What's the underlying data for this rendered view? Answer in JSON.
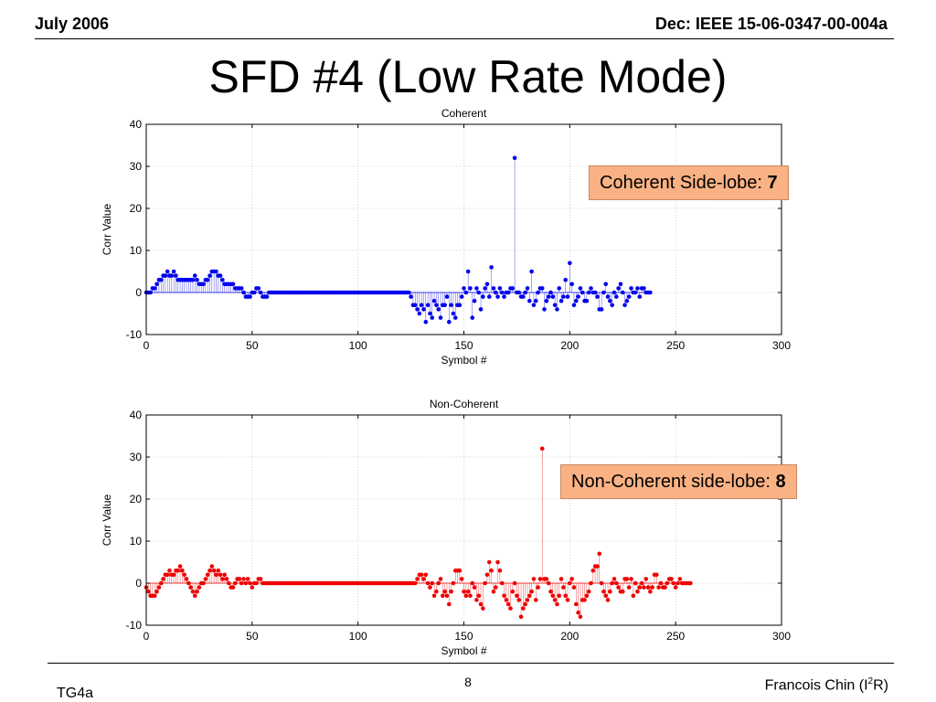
{
  "header": {
    "left": "July 2006",
    "right": "Dec: IEEE 15-06-0347-00-004a"
  },
  "slide_title": "SFD #4 (Low Rate Mode)",
  "callouts": {
    "coherent": {
      "label": "Coherent Side-lobe:",
      "value": "7"
    },
    "noncoherent": {
      "label": "Non-Coherent side-lobe:",
      "value": "8"
    }
  },
  "footer": {
    "left": "TG4a",
    "page": "8",
    "author_pre": "Francois Chin (I",
    "author_sup": "2",
    "author_post": "R)"
  },
  "colors": {
    "coherent": "#0000ee",
    "noncoherent": "#ee0000",
    "callout_fill": "#fab284"
  },
  "chart_data": [
    {
      "type": "stem",
      "title": "Coherent",
      "xlabel": "Symbol #",
      "ylabel": "Corr Value",
      "xlim": [
        0,
        300
      ],
      "ylim": [
        -10,
        40
      ],
      "xticks": [
        0,
        50,
        100,
        150,
        200,
        250,
        300
      ],
      "yticks": [
        -10,
        0,
        10,
        20,
        30,
        40
      ],
      "grid": true,
      "color": "#0000ee",
      "x_start": 0,
      "values": [
        0,
        0,
        0,
        1,
        1,
        2,
        3,
        3,
        4,
        4,
        5,
        4,
        4,
        5,
        4,
        3,
        3,
        3,
        3,
        3,
        3,
        3,
        3,
        4,
        3,
        2,
        2,
        2,
        3,
        3,
        4,
        5,
        5,
        5,
        4,
        4,
        3,
        2,
        2,
        2,
        2,
        2,
        1,
        1,
        1,
        1,
        0,
        -1,
        -1,
        -1,
        0,
        0,
        1,
        1,
        0,
        -1,
        -1,
        -1,
        0,
        0,
        0,
        0,
        0,
        0,
        0,
        0,
        0,
        0,
        0,
        0,
        0,
        0,
        0,
        0,
        0,
        0,
        0,
        0,
        0,
        0,
        0,
        0,
        0,
        0,
        0,
        0,
        0,
        0,
        0,
        0,
        0,
        0,
        0,
        0,
        0,
        0,
        0,
        0,
        0,
        0,
        0,
        0,
        0,
        0,
        0,
        0,
        0,
        0,
        0,
        0,
        0,
        0,
        0,
        0,
        0,
        0,
        0,
        0,
        0,
        0,
        0,
        0,
        0,
        0,
        0,
        -1,
        -3,
        -3,
        -4,
        -5,
        -3,
        -4,
        -7,
        -3,
        -5,
        -6,
        -2,
        -3,
        -4,
        -6,
        -3,
        -3,
        -1,
        -7,
        -3,
        -5,
        -6,
        -3,
        -3,
        -1,
        1,
        0,
        5,
        1,
        -6,
        -2,
        1,
        0,
        -4,
        -1,
        1,
        2,
        -1,
        6,
        1,
        0,
        -1,
        1,
        0,
        -1,
        0,
        0,
        1,
        1,
        32,
        0,
        0,
        -1,
        -1,
        0,
        1,
        -2,
        5,
        -3,
        -2,
        0,
        1,
        1,
        -4,
        -2,
        -1,
        0,
        -1,
        -3,
        -4,
        1,
        -2,
        -1,
        3,
        -1,
        7,
        2,
        -3,
        -2,
        -1,
        1,
        0,
        -2,
        -2,
        0,
        1,
        0,
        0,
        -1,
        -4,
        -4,
        0,
        2,
        -1,
        -2,
        -3,
        0,
        -1,
        1,
        2,
        0,
        -3,
        -2,
        -1,
        1,
        0,
        0,
        1,
        -1,
        1,
        1,
        0,
        0,
        0
      ]
    },
    {
      "type": "stem",
      "title": "Non-Coherent",
      "xlabel": "Symbol #",
      "ylabel": "Corr Value",
      "xlim": [
        0,
        300
      ],
      "ylim": [
        -10,
        40
      ],
      "xticks": [
        0,
        50,
        100,
        150,
        200,
        250,
        300
      ],
      "yticks": [
        -10,
        0,
        10,
        20,
        30,
        40
      ],
      "grid": true,
      "color": "#ee0000",
      "x_start": 0,
      "values": [
        -1,
        -2,
        -3,
        -3,
        -3,
        -2,
        -1,
        0,
        1,
        2,
        2,
        3,
        2,
        2,
        3,
        3,
        4,
        3,
        2,
        1,
        0,
        -1,
        -2,
        -3,
        -2,
        -1,
        0,
        0,
        1,
        2,
        3,
        4,
        3,
        2,
        3,
        2,
        1,
        2,
        1,
        0,
        -1,
        -1,
        0,
        1,
        1,
        0,
        1,
        0,
        1,
        0,
        -1,
        0,
        0,
        1,
        1,
        0,
        0,
        0,
        0,
        0,
        0,
        0,
        0,
        0,
        0,
        0,
        0,
        0,
        0,
        0,
        0,
        0,
        0,
        0,
        0,
        0,
        0,
        0,
        0,
        0,
        0,
        0,
        0,
        0,
        0,
        0,
        0,
        0,
        0,
        0,
        0,
        0,
        0,
        0,
        0,
        0,
        0,
        0,
        0,
        0,
        0,
        0,
        0,
        0,
        0,
        0,
        0,
        0,
        0,
        0,
        0,
        0,
        0,
        0,
        0,
        0,
        0,
        0,
        0,
        0,
        0,
        0,
        0,
        0,
        0,
        0,
        0,
        0,
        1,
        2,
        2,
        1,
        2,
        0,
        -1,
        0,
        -3,
        -2,
        0,
        1,
        -3,
        -2,
        -3,
        -5,
        -2,
        0,
        3,
        3,
        3,
        1,
        -2,
        -3,
        -2,
        -3,
        0,
        -1,
        -4,
        -3,
        -5,
        -6,
        0,
        2,
        5,
        3,
        -2,
        -1,
        5,
        3,
        0,
        -3,
        -4,
        -5,
        -6,
        -2,
        0,
        -3,
        -4,
        -8,
        -6,
        -5,
        -4,
        -3,
        -2,
        1,
        -4,
        -1,
        1,
        32,
        1,
        1,
        0,
        -2,
        -3,
        -4,
        -5,
        -3,
        1,
        -1,
        -3,
        -4,
        0,
        1,
        -1,
        -5,
        -7,
        -8,
        -4,
        -4,
        -3,
        -2,
        0,
        3,
        4,
        4,
        7,
        0,
        -2,
        -3,
        -4,
        -2,
        0,
        1,
        0,
        -1,
        -2,
        -2,
        1,
        1,
        -1,
        1,
        -3,
        0,
        -2,
        -1,
        0,
        -1,
        1,
        -1,
        -2,
        -1,
        2,
        2,
        -1,
        0,
        -1,
        -1,
        0,
        1,
        1,
        0,
        -1,
        0,
        1,
        0,
        0,
        0,
        0,
        0
      ]
    }
  ]
}
